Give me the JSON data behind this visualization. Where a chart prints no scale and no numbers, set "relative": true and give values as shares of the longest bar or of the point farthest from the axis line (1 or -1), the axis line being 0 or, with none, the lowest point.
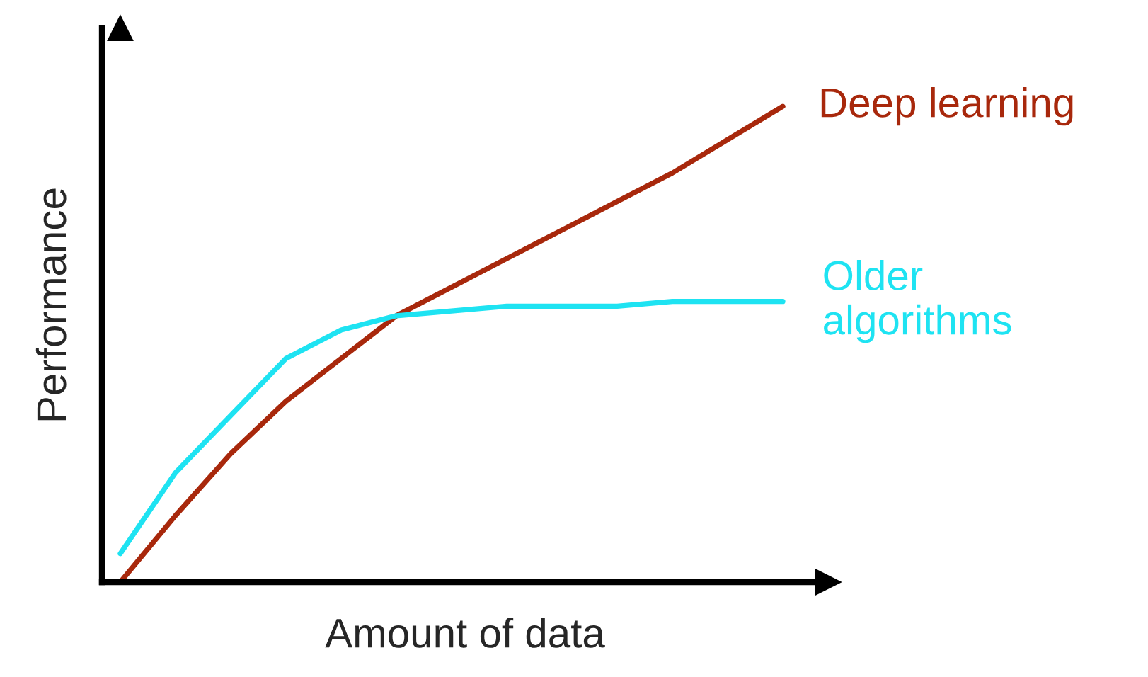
{
  "chart_data": {
    "type": "line",
    "relative": true,
    "xlabel": "Amount of data",
    "ylabel": "Performance",
    "legend": false,
    "categories": [
      null,
      null,
      null,
      null,
      null,
      null,
      null,
      null,
      null,
      null,
      null,
      null,
      null
    ],
    "series": [
      {
        "name": "Deep learning",
        "color": "#a8280c",
        "values": [
          0,
          0.14,
          0.27,
          0.38,
          0.47,
          0.56,
          0.62,
          0.68,
          0.74,
          0.8,
          0.86,
          0.93,
          1
        ]
      },
      {
        "name": "Older algorithms",
        "color": "#1ee3f2",
        "values": [
          0.06,
          0.23,
          0.35,
          0.47,
          0.53,
          0.56,
          0.57,
          0.58,
          0.58,
          0.58,
          0.59,
          0.59,
          0.59
        ]
      }
    ]
  }
}
